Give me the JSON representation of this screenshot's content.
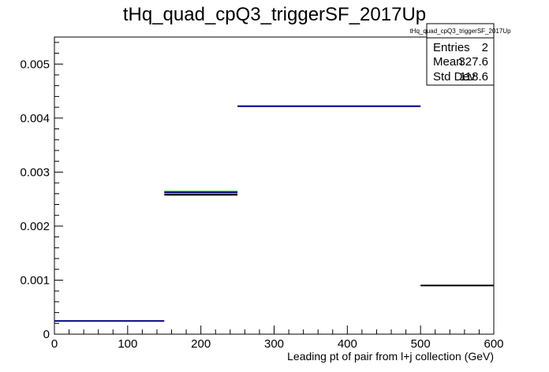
{
  "chart_data": {
    "type": "histogram",
    "title": "tHq_quad_cpQ3_triggerSF_2017Up",
    "xlabel": "Leading pt of pair from l+j collection (GeV)",
    "ylabel": "",
    "xlim": [
      0,
      600
    ],
    "ylim": [
      0,
      0.0055
    ],
    "x_ticks": [
      0,
      100,
      200,
      300,
      400,
      500,
      600
    ],
    "x_tick_labels": [
      "0",
      "100",
      "200",
      "300",
      "400",
      "500",
      "600"
    ],
    "y_ticks": [
      0,
      0.001,
      0.002,
      0.003,
      0.004,
      0.005
    ],
    "y_tick_labels": [
      "0",
      "0.001",
      "0.002",
      "0.003",
      "0.004",
      "0.005"
    ],
    "grid": false,
    "legend": "none",
    "bins": [
      {
        "x_low": 0,
        "x_high": 150,
        "y": 0.000245,
        "color": "#000080"
      },
      {
        "x_low": 150,
        "x_high": 250,
        "y": 0.00264,
        "color": "#00c000"
      },
      {
        "x_low": 150,
        "x_high": 250,
        "y": 0.00262,
        "color": "#000080"
      },
      {
        "x_low": 150,
        "x_high": 250,
        "y": 0.00258,
        "color": "#000000"
      },
      {
        "x_low": 250,
        "x_high": 500,
        "y": 0.00422,
        "color": "#000080"
      },
      {
        "x_low": 500,
        "x_high": 600,
        "y": 0.0009,
        "color": "#000000"
      }
    ],
    "stats": {
      "name": "tHq_quad_cpQ3_triggerSF_2017Up",
      "rows": [
        {
          "label": "Entries",
          "value": "2"
        },
        {
          "label": "Mean",
          "value": "327.6"
        },
        {
          "label": "Std Dev",
          "value": "118.6"
        }
      ]
    }
  }
}
